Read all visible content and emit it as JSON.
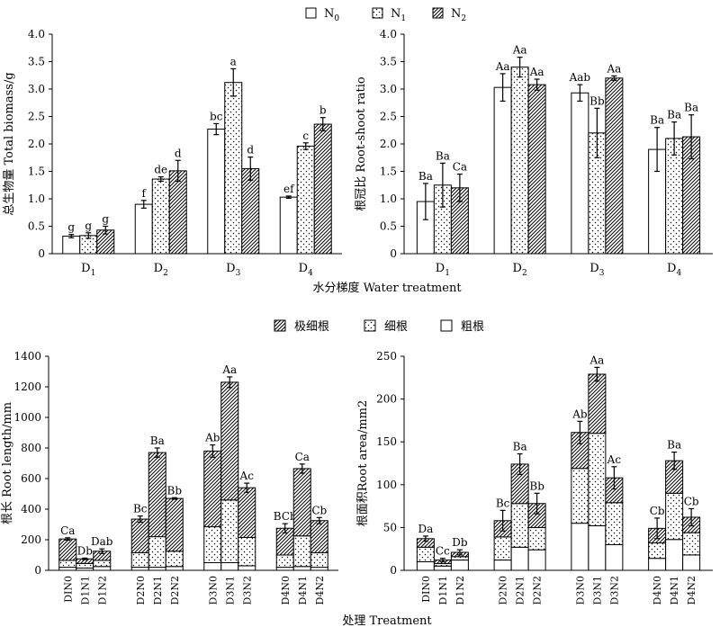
{
  "chart_data": [
    {
      "type": "bar",
      "ylabel": "总生物量 Total biomass/g",
      "ylim": [
        0,
        4
      ],
      "yticks": [
        "0",
        "0.5",
        "1.0",
        "1.5",
        "2.0",
        "2.5",
        "3.0",
        "3.5",
        "4.0"
      ],
      "categories": [
        "D1",
        "D2",
        "D3",
        "D4"
      ],
      "series": [
        {
          "name": "N0",
          "pattern": "empty",
          "values": [
            0.32,
            0.9,
            2.27,
            1.03
          ],
          "errors": [
            0.03,
            0.07,
            0.1,
            0.02
          ],
          "labels": [
            "g",
            "f",
            "bc",
            "ef"
          ]
        },
        {
          "name": "N1",
          "pattern": "dots",
          "values": [
            0.33,
            1.36,
            3.12,
            1.96
          ],
          "errors": [
            0.05,
            0.04,
            0.25,
            0.06
          ],
          "labels": [
            "g",
            "de",
            "a",
            "c"
          ]
        },
        {
          "name": "N2",
          "pattern": "hatch",
          "values": [
            0.43,
            1.51,
            1.55,
            2.36
          ],
          "errors": [
            0.07,
            0.19,
            0.21,
            0.12
          ],
          "labels": [
            "g",
            "d",
            "d",
            "b"
          ]
        }
      ]
    },
    {
      "type": "bar",
      "ylabel": "根冠比 Root-shoot ratio",
      "ylim": [
        0,
        4
      ],
      "yticks": [
        "0",
        "0.5",
        "1.0",
        "1.5",
        "2.0",
        "2.5",
        "3.0",
        "3.5",
        "4.0"
      ],
      "categories": [
        "D1",
        "D2",
        "D3",
        "D4"
      ],
      "series": [
        {
          "name": "N0",
          "pattern": "empty",
          "values": [
            0.95,
            3.03,
            2.93,
            1.9
          ],
          "errors": [
            0.33,
            0.25,
            0.15,
            0.4
          ],
          "labels": [
            "Ba",
            "Aa",
            "Aab",
            "Ba"
          ]
        },
        {
          "name": "N1",
          "pattern": "dots",
          "values": [
            1.25,
            3.4,
            2.2,
            2.1
          ],
          "errors": [
            0.4,
            0.18,
            0.45,
            0.3
          ],
          "labels": [
            "Ba",
            "Aa",
            "Bb",
            "Ba"
          ]
        },
        {
          "name": "N2",
          "pattern": "hatch",
          "values": [
            1.2,
            3.08,
            3.2,
            2.13
          ],
          "errors": [
            0.25,
            0.1,
            0.04,
            0.4
          ],
          "labels": [
            "Ca",
            "Aa",
            "Aa",
            "Ba"
          ]
        }
      ]
    },
    {
      "type": "stacked-bar",
      "ylabel": "根长 Root length/mm",
      "ylim": [
        0,
        1400
      ],
      "yticks": [
        "0",
        "200",
        "400",
        "600",
        "800",
        "1000",
        "1200",
        "1400"
      ],
      "groups": [
        [
          "DIN0",
          "D1N1",
          "D1N2"
        ],
        [
          "D2N0",
          "D2N1",
          "D2N2"
        ],
        [
          "D3N0",
          "D3N1",
          "D3N2"
        ],
        [
          "D4N0",
          "D4N1",
          "D4N2"
        ]
      ],
      "series": [
        {
          "name": "粗根",
          "pattern": "empty",
          "values": [
            20,
            15,
            25,
            20,
            20,
            25,
            50,
            50,
            30,
            20,
            25,
            20
          ]
        },
        {
          "name": "细根",
          "pattern": "dots",
          "values": [
            45,
            30,
            40,
            95,
            200,
            100,
            235,
            410,
            185,
            80,
            200,
            95
          ]
        },
        {
          "name": "极细根",
          "pattern": "hatch",
          "values": [
            140,
            30,
            60,
            220,
            550,
            345,
            495,
            770,
            325,
            175,
            440,
            210
          ]
        }
      ],
      "errors": [
        8,
        5,
        15,
        20,
        30,
        5,
        40,
        35,
        30,
        30,
        30,
        20
      ],
      "labels": [
        "Ca",
        "Db",
        "Dab",
        "Bc",
        "Ba",
        "Bb",
        "Ab",
        "Aa",
        "Ac",
        "BCb",
        "Ca",
        "Cb"
      ]
    },
    {
      "type": "stacked-bar",
      "ylabel": "根面积Root area/mm2",
      "ylim": [
        0,
        250
      ],
      "yticks": [
        "0",
        "50",
        "100",
        "150",
        "200",
        "250"
      ],
      "groups": [
        [
          "DIN0",
          "D1N1",
          "D1N2"
        ],
        [
          "D2N0",
          "D2N1",
          "D2N2"
        ],
        [
          "D3N0",
          "D3N1",
          "D3N2"
        ],
        [
          "D4N0",
          "D4N1",
          "D4N2"
        ]
      ],
      "series": [
        {
          "name": "粗根",
          "pattern": "empty",
          "values": [
            10,
            5,
            12,
            12,
            27,
            24,
            55,
            52,
            30,
            14,
            36,
            18
          ]
        },
        {
          "name": "细根",
          "pattern": "dots",
          "values": [
            17,
            3,
            4,
            27,
            51,
            26,
            64,
            108,
            49,
            18,
            54,
            26
          ]
        },
        {
          "name": "极细根",
          "pattern": "hatch",
          "values": [
            10,
            4,
            5,
            19,
            46,
            28,
            42,
            69,
            29,
            17,
            38,
            18
          ]
        }
      ],
      "errors": [
        3,
        2,
        3,
        12,
        12,
        12,
        13,
        8,
        13,
        12,
        10,
        10
      ],
      "labels": [
        "Da",
        "Cc",
        "Db",
        "Bc",
        "Ba",
        "Bb",
        "Ab",
        "Aa",
        "Ac",
        "Cb",
        "Ba",
        "Cb"
      ]
    }
  ],
  "legend_top": [
    {
      "base": "N",
      "sub": "0",
      "pattern": "empty"
    },
    {
      "base": "N",
      "sub": "1",
      "pattern": "dots"
    },
    {
      "base": "N",
      "sub": "2",
      "pattern": "hatch"
    }
  ],
  "legend_bottom": [
    {
      "label": "极细根",
      "pattern": "hatch"
    },
    {
      "label": "细根",
      "pattern": "dots"
    },
    {
      "label": "粗根",
      "pattern": "empty"
    }
  ],
  "top_xlabel": "水分梯度 Water treatment",
  "bottom_xlabel": "处理 Treatment",
  "top_categories": [
    {
      "base": "D",
      "sub": "1"
    },
    {
      "base": "D",
      "sub": "2"
    },
    {
      "base": "D",
      "sub": "3"
    },
    {
      "base": "D",
      "sub": "4"
    }
  ]
}
